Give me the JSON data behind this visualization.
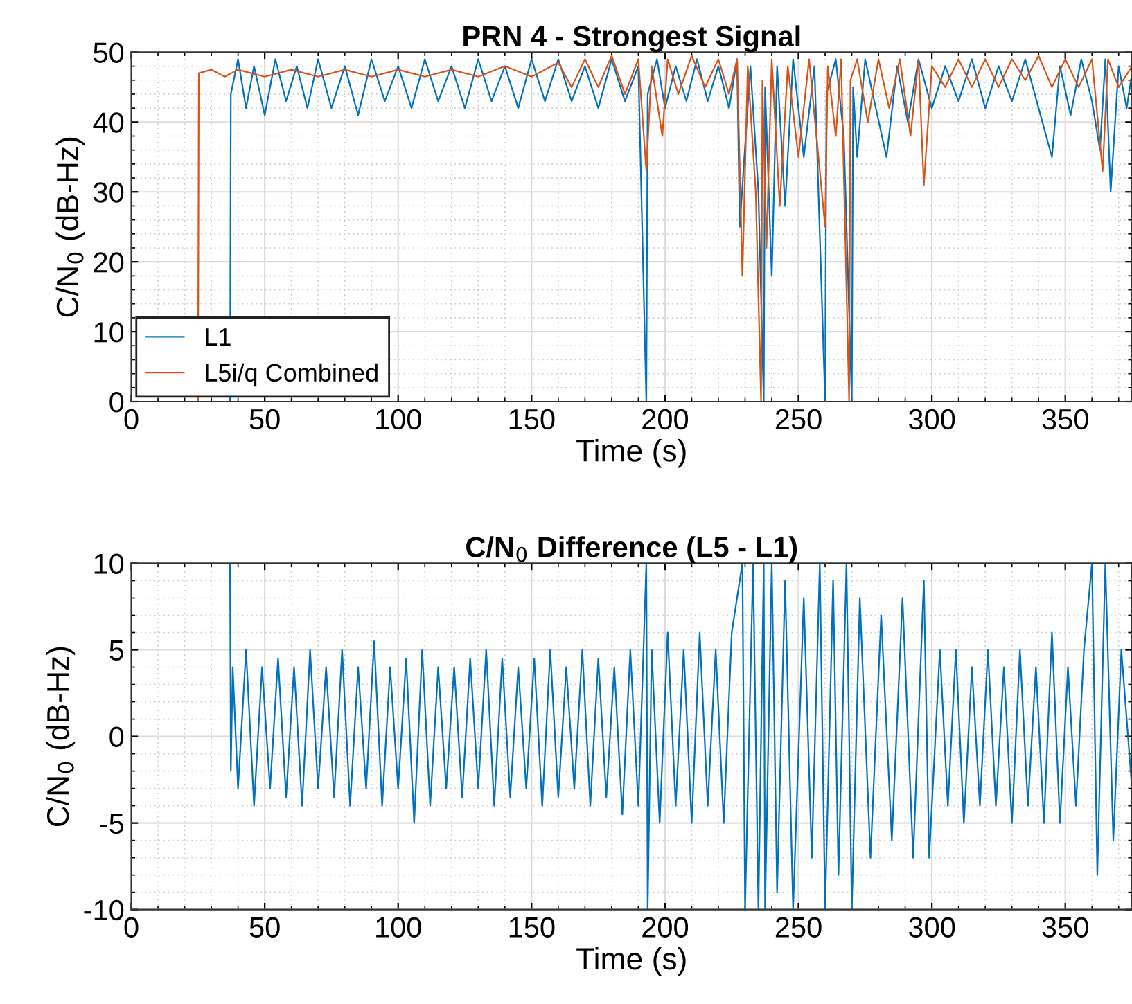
{
  "chart_data": [
    {
      "type": "line",
      "title": "PRN 4 - Strongest Signal",
      "xlabel": "Time (s)",
      "ylabel": "C/N$_{0}$ (dB-Hz)",
      "xlim": [
        0,
        375
      ],
      "xticks": [
        0,
        50,
        100,
        150,
        200,
        250,
        300,
        350
      ],
      "ylim": [
        0,
        50
      ],
      "yticks": [
        0,
        10,
        20,
        30,
        40,
        50
      ],
      "grid": true,
      "legend": "bottom left",
      "series": [
        {
          "name": "L1",
          "color": "#0072bd",
          "x": [
            37,
            37.3,
            40,
            43,
            46,
            50,
            54,
            58,
            62,
            66,
            70,
            75,
            80,
            85,
            90,
            95,
            100,
            105,
            110,
            115,
            120,
            125,
            130,
            135,
            140,
            145,
            150,
            155,
            160,
            165,
            170,
            175,
            180,
            185,
            190,
            193,
            193.5,
            197,
            200,
            204,
            208,
            212,
            216,
            220,
            224,
            227,
            228,
            232,
            235,
            237,
            237.5,
            240,
            242,
            245,
            248,
            252,
            256,
            260,
            260.5,
            264,
            267,
            270,
            270.5,
            272,
            275,
            279,
            283,
            287,
            291,
            295,
            300,
            305,
            310,
            315,
            320,
            325,
            330,
            335,
            340,
            345,
            348,
            352,
            356,
            360,
            363,
            365,
            367,
            370,
            373,
            375
          ],
          "values": [
            0,
            44,
            49,
            42,
            48,
            41,
            49,
            43,
            48,
            42,
            49,
            42,
            48,
            41,
            49,
            43,
            48,
            42,
            49,
            43,
            48,
            42,
            49,
            43,
            48,
            42,
            49,
            43,
            49,
            43,
            48,
            42,
            49,
            43,
            48,
            0,
            44,
            49,
            42,
            48,
            43,
            49,
            43,
            48,
            42,
            49,
            25,
            48,
            30,
            0,
            45,
            18,
            48,
            28,
            49,
            35,
            48,
            0,
            44,
            49,
            38,
            0,
            45,
            35,
            49,
            42,
            35,
            48,
            40,
            49,
            42,
            48,
            43,
            49,
            42,
            48,
            43,
            49,
            42,
            35,
            48,
            41,
            49,
            43,
            36,
            49,
            30,
            48,
            42,
            47
          ]
        },
        {
          "name": "L5i/q Combined",
          "color": "#d95319",
          "x": [
            25,
            25.3,
            30,
            35,
            40,
            50,
            60,
            70,
            80,
            90,
            100,
            110,
            120,
            130,
            140,
            150,
            160,
            165,
            170,
            175,
            180,
            185,
            190,
            193,
            195,
            199,
            201,
            205,
            210,
            215,
            220,
            224,
            227,
            229,
            231,
            234,
            236,
            236.5,
            238,
            240,
            243,
            246,
            250,
            254,
            258,
            260,
            261,
            264,
            266,
            269,
            269.5,
            272,
            276,
            280,
            284,
            288,
            292,
            295,
            297,
            300,
            305,
            310,
            315,
            320,
            325,
            330,
            335,
            340,
            345,
            350,
            355,
            360,
            364,
            366,
            370,
            375
          ],
          "values": [
            0,
            47,
            47.5,
            46.5,
            47.5,
            46.5,
            47.5,
            46.5,
            47.5,
            46.5,
            47.5,
            46.5,
            47.5,
            46.5,
            48,
            46.5,
            48.5,
            45,
            49,
            45,
            49.5,
            44,
            49,
            33,
            48,
            38,
            49,
            44,
            49.5,
            45,
            49,
            44,
            49,
            18,
            48,
            30,
            0,
            46,
            22,
            49,
            28,
            48,
            35,
            49,
            33,
            25,
            48,
            38,
            49,
            0,
            46,
            49,
            40,
            49,
            42,
            49,
            38,
            49,
            31,
            48,
            45,
            49,
            45,
            49,
            45,
            49,
            46,
            49.5,
            45,
            49,
            45,
            49,
            33,
            49,
            45,
            48
          ]
        }
      ]
    },
    {
      "type": "line",
      "title": "C/N$_{0}$ Difference (L5 - L1)",
      "xlabel": "Time (s)",
      "ylabel": "C/N$_{0}$ (dB-Hz)",
      "xlim": [
        0,
        375
      ],
      "xticks": [
        0,
        50,
        100,
        150,
        200,
        250,
        300,
        350
      ],
      "ylim": [
        -10,
        10
      ],
      "yticks": [
        -10,
        -5,
        0,
        5,
        10
      ],
      "grid": true,
      "series": [
        {
          "color": "#0072bd",
          "x": [
            37,
            37.3,
            38,
            40,
            43,
            46,
            49,
            52,
            55,
            58,
            61,
            64,
            67,
            70,
            73,
            76,
            79,
            82,
            85,
            88,
            91,
            94,
            97,
            100,
            103,
            106,
            109,
            112,
            115,
            118,
            121,
            124,
            127,
            130,
            133,
            136,
            139,
            142,
            145,
            148,
            151,
            154,
            157,
            160,
            163,
            166,
            169,
            172,
            175,
            178,
            181,
            184,
            187,
            190,
            193,
            193.5,
            195,
            198,
            201,
            204,
            207,
            210,
            213,
            216,
            219,
            222,
            225,
            229,
            230,
            233,
            235,
            237,
            237.5,
            240,
            242,
            245,
            248,
            252,
            255,
            258,
            260,
            263,
            265,
            268,
            270,
            273,
            277,
            281,
            285,
            289,
            293,
            297,
            299,
            303,
            306,
            309,
            312,
            315,
            318,
            321,
            324,
            327,
            330,
            333,
            336,
            339,
            342,
            345,
            348,
            351,
            354,
            357,
            360,
            362,
            365,
            368,
            371,
            375
          ],
          "values": [
            10,
            -2,
            4,
            -3,
            5,
            -4,
            4,
            -3,
            4.5,
            -3.5,
            4,
            -4,
            5,
            -3,
            4,
            -3.5,
            5,
            -4,
            4,
            -3,
            5.5,
            -4,
            4,
            -3,
            4.5,
            -5,
            5,
            -4,
            4,
            -3,
            4,
            -3.5,
            4.5,
            -3,
            5,
            -4,
            4.5,
            -3.5,
            4,
            -3,
            4.5,
            -4,
            5,
            -3.5,
            4,
            -3,
            5,
            -4,
            4.5,
            -3.5,
            4,
            -4.5,
            5,
            -4,
            10,
            -10,
            5,
            -5,
            6,
            -4,
            5,
            -5,
            6,
            -4,
            5,
            -5,
            6,
            10,
            -10,
            10,
            -10,
            10,
            -10,
            10,
            -9,
            9,
            -10,
            8,
            -7,
            10,
            -10,
            9,
            -8,
            10,
            -10,
            8,
            -7,
            7,
            -6,
            8,
            -7,
            9,
            -7,
            5,
            -4,
            5,
            -5,
            4,
            -4,
            5,
            -4,
            4,
            -5,
            5,
            -4,
            4,
            -5,
            6,
            -5,
            4,
            -4,
            5,
            10,
            -8,
            10,
            -6,
            5,
            -3
          ]
        }
      ]
    }
  ]
}
